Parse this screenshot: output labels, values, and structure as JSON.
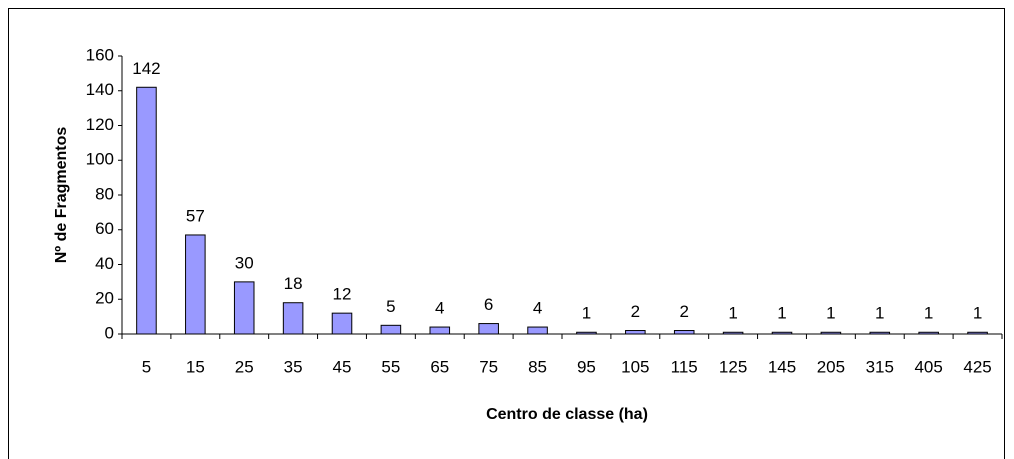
{
  "chart_data": {
    "type": "bar",
    "x_label": "Centro de classe (ha)",
    "y_label": "Nº de Fragmentos",
    "categories": [
      "5",
      "15",
      "25",
      "35",
      "45",
      "55",
      "65",
      "75",
      "85",
      "95",
      "105",
      "115",
      "125",
      "145",
      "205",
      "315",
      "405",
      "425"
    ],
    "values": [
      142,
      57,
      30,
      18,
      12,
      5,
      4,
      6,
      4,
      1,
      2,
      2,
      1,
      1,
      1,
      1,
      1,
      1
    ],
    "color": "#9999ff",
    "ylim": [
      0,
      160
    ],
    "yticks": [
      0,
      20,
      40,
      60,
      80,
      100,
      120,
      140,
      160
    ],
    "grid": false,
    "data_labels": true
  }
}
